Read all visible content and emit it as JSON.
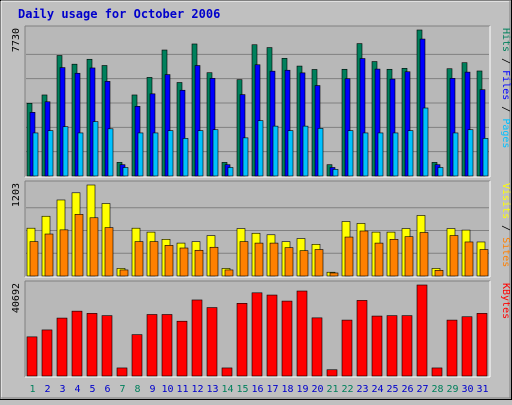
{
  "colors": {
    "background": "#C0C0C0",
    "plot_bg": "#B8B8B8",
    "title": "#0000CC",
    "hits": "#00805C",
    "files": "#0000FF",
    "pages": "#00C0FF",
    "visits": "#FFFF00",
    "sites": "#FF8000",
    "kbytes": "#FF0000",
    "weekday_label": "#0000CC",
    "weekend_label": "#00805C"
  },
  "chart_data": [
    {
      "type": "bar",
      "title": "Daily usage for October 2006",
      "ylabel": [
        "Hits",
        "Files",
        "Pages"
      ],
      "ylabel_separator": " / ",
      "ymax_label": "7730",
      "ylim": [
        0,
        7730
      ],
      "categories": [
        "1",
        "2",
        "3",
        "4",
        "5",
        "6",
        "7",
        "8",
        "9",
        "10",
        "11",
        "12",
        "13",
        "14",
        "15",
        "16",
        "17",
        "18",
        "19",
        "20",
        "21",
        "22",
        "23",
        "24",
        "25",
        "26",
        "27",
        "28",
        "29",
        "30",
        "31"
      ],
      "weekend_days": [
        "1",
        "7",
        "8",
        "14",
        "15",
        "21",
        "22",
        "28",
        "29"
      ],
      "series": [
        {
          "name": "Hits",
          "color_key": "hits",
          "values": [
            3850,
            4290,
            6380,
            5920,
            6180,
            5850,
            720,
            4290,
            5220,
            6670,
            4950,
            6990,
            5470,
            720,
            5100,
            6950,
            6800,
            6230,
            5820,
            5640,
            600,
            5650,
            7010,
            6060,
            5650,
            5700,
            7730,
            720,
            5680,
            6000,
            5560
          ]
        },
        {
          "name": "Files",
          "color_key": "files",
          "values": [
            3370,
            3930,
            5740,
            5440,
            5720,
            5010,
            600,
            3690,
            4350,
            5370,
            4540,
            5850,
            5170,
            600,
            4310,
            5890,
            5550,
            5600,
            5460,
            4790,
            450,
            5150,
            6220,
            5660,
            5130,
            5520,
            7250,
            600,
            5170,
            5500,
            4570
          ]
        },
        {
          "name": "Pages",
          "color_key": "pages",
          "values": [
            2280,
            2400,
            2610,
            2280,
            2880,
            2500,
            450,
            2280,
            2280,
            2400,
            1990,
            2400,
            2450,
            450,
            2020,
            2930,
            2640,
            2400,
            2640,
            2520,
            350,
            2400,
            2280,
            2280,
            2280,
            2400,
            3600,
            450,
            2280,
            2450,
            1990
          ]
        }
      ]
    },
    {
      "type": "bar",
      "ylabel": [
        "Visits",
        "Sites"
      ],
      "ylabel_separator": " / ",
      "ymax_label": "1203",
      "ylim": [
        0,
        1203
      ],
      "categories": [
        "1",
        "2",
        "3",
        "4",
        "5",
        "6",
        "7",
        "8",
        "9",
        "10",
        "11",
        "12",
        "13",
        "14",
        "15",
        "16",
        "17",
        "18",
        "19",
        "20",
        "21",
        "22",
        "23",
        "24",
        "25",
        "26",
        "27",
        "28",
        "29",
        "30",
        "31"
      ],
      "series": [
        {
          "name": "Visits",
          "color_key": "visits",
          "values": [
            632,
            790,
            1005,
            1100,
            1203,
            958,
            100,
            632,
            580,
            485,
            435,
            454,
            534,
            100,
            627,
            565,
            545,
            454,
            495,
            419,
            50,
            720,
            695,
            580,
            580,
            627,
            800,
            100,
            627,
            607,
            450
          ]
        },
        {
          "name": "Sites",
          "color_key": "sites",
          "values": [
            455,
            555,
            610,
            815,
            770,
            640,
            80,
            455,
            455,
            405,
            370,
            340,
            380,
            80,
            455,
            435,
            435,
            375,
            335,
            350,
            40,
            515,
            595,
            435,
            485,
            520,
            575,
            75,
            535,
            450,
            350
          ]
        }
      ]
    },
    {
      "type": "bar",
      "ylabel": [
        "KBytes"
      ],
      "ymax_label": "40692",
      "ylim": [
        0,
        40692
      ],
      "categories": [
        "1",
        "2",
        "3",
        "4",
        "5",
        "6",
        "7",
        "8",
        "9",
        "10",
        "11",
        "12",
        "13",
        "14",
        "15",
        "16",
        "17",
        "18",
        "19",
        "20",
        "21",
        "22",
        "23",
        "24",
        "25",
        "26",
        "27",
        "28",
        "29",
        "30",
        "31"
      ],
      "series": [
        {
          "name": "KBytes",
          "color_key": "kbytes",
          "values": [
            17500,
            20600,
            25900,
            29000,
            28000,
            27000,
            3600,
            18500,
            27500,
            27500,
            24500,
            34000,
            30600,
            3600,
            32500,
            37200,
            36200,
            33500,
            38000,
            26000,
            2800,
            25000,
            33800,
            26800,
            27000,
            27000,
            40692,
            3600,
            25000,
            26500,
            28000
          ]
        }
      ]
    }
  ]
}
